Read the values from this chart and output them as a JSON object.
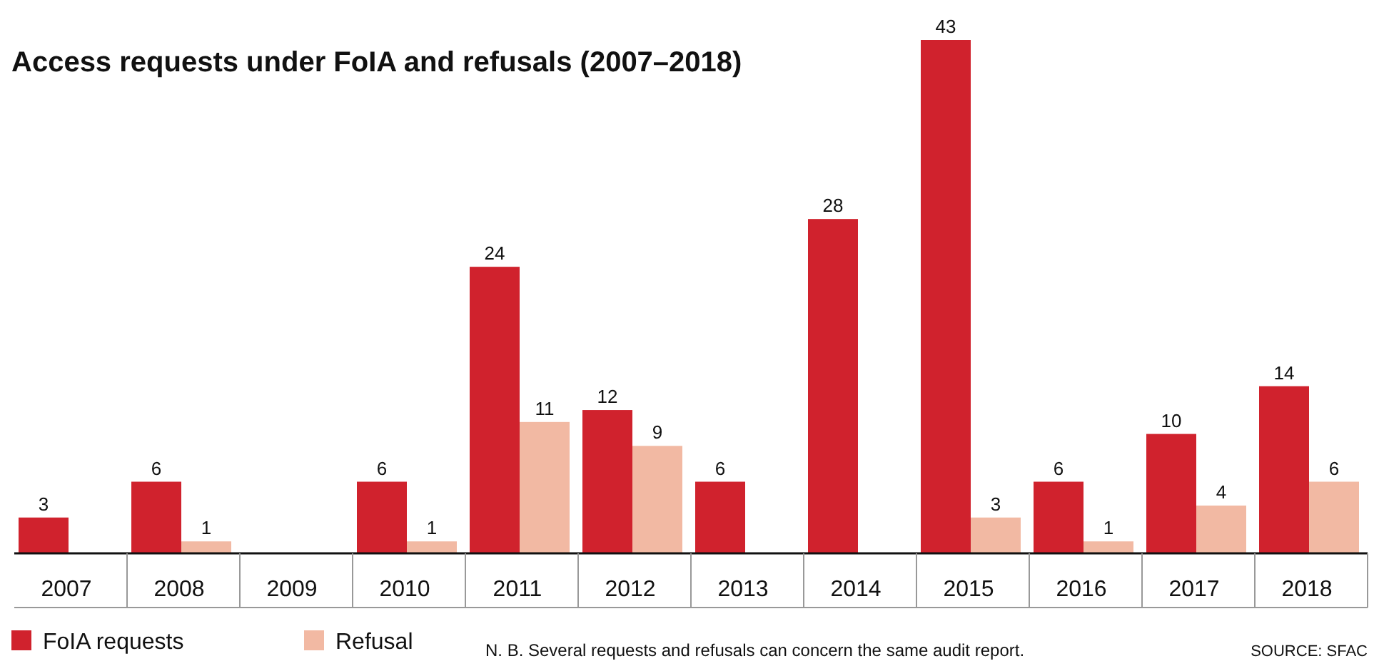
{
  "chart_data": {
    "type": "bar",
    "title": "Access requests under FoIA and refusals (2007–2018)",
    "categories": [
      "2007",
      "2008",
      "2009",
      "2010",
      "2011",
      "2012",
      "2013",
      "2014",
      "2015",
      "2016",
      "2017",
      "2018"
    ],
    "series": [
      {
        "name": "FoIA requests",
        "color": "#d0222d",
        "values": [
          3,
          6,
          null,
          6,
          24,
          12,
          6,
          28,
          43,
          6,
          10,
          14
        ]
      },
      {
        "name": "Refusal",
        "color": "#f2b9a3",
        "values": [
          null,
          1,
          null,
          1,
          11,
          9,
          null,
          null,
          3,
          1,
          4,
          6
        ]
      }
    ],
    "data_labels": true,
    "legend": "bottom left",
    "grid": false,
    "annotations": [
      "N. B. Several requests and refusals can concern the same audit report.",
      "SOURCE: SFAC"
    ]
  }
}
